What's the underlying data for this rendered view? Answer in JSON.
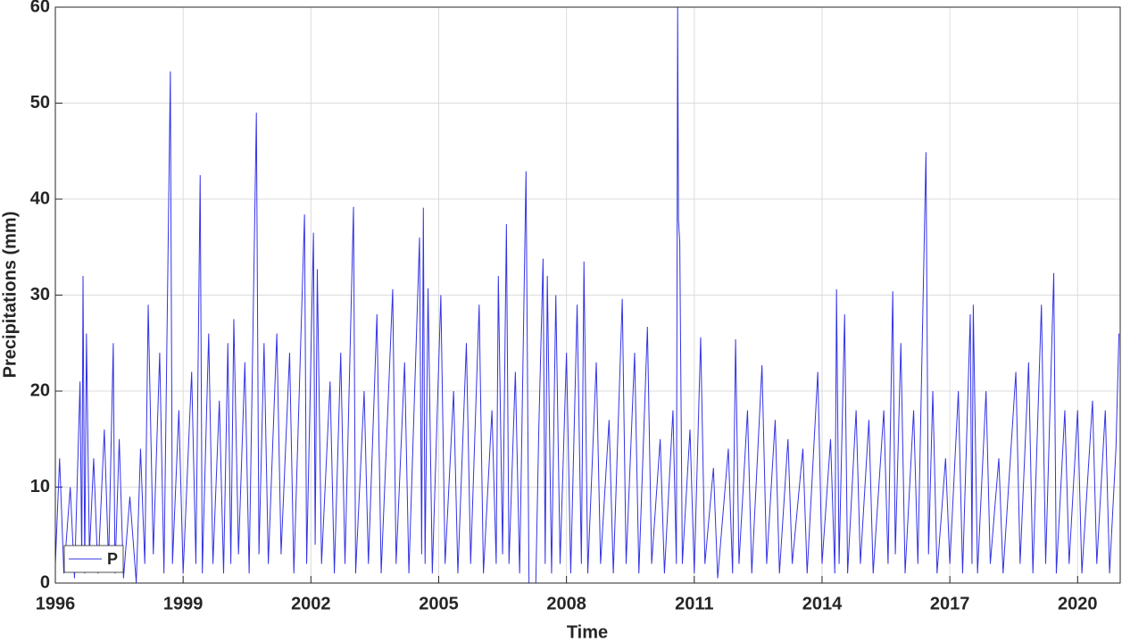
{
  "chart_data": {
    "type": "line",
    "xlabel": "Time",
    "ylabel": "Precipitations (mm)",
    "xlim": [
      1996,
      2021
    ],
    "xticks": [
      1996,
      1999,
      2002,
      2005,
      2008,
      2011,
      2014,
      2017,
      2020
    ],
    "ylim": [
      0,
      60
    ],
    "yticks": [
      0,
      10,
      20,
      30,
      40,
      50,
      60
    ],
    "grid": true,
    "legend": "lower left",
    "x": [
      1996.0,
      1996.1,
      1996.2,
      1996.35,
      1996.45,
      1996.58,
      1996.62,
      1996.65,
      1996.69,
      1996.73,
      1996.8,
      1996.9,
      1997.0,
      1997.15,
      1997.25,
      1997.36,
      1997.4,
      1997.5,
      1997.6,
      1997.75,
      1997.9,
      1998.0,
      1998.1,
      1998.18,
      1998.3,
      1998.45,
      1998.55,
      1998.7,
      1998.75,
      1998.9,
      1999.0,
      1999.2,
      1999.3,
      1999.4,
      1999.45,
      1999.6,
      1999.7,
      1999.85,
      1999.95,
      2000.05,
      2000.12,
      2000.19,
      2000.3,
      2000.45,
      2000.55,
      2000.72,
      2000.78,
      2000.9,
      2001.0,
      2001.2,
      2001.3,
      2001.5,
      2001.6,
      2001.85,
      2001.9,
      2002.06,
      2002.1,
      2002.15,
      2002.25,
      2002.45,
      2002.55,
      2002.7,
      2002.8,
      2003.0,
      2003.05,
      2003.25,
      2003.35,
      2003.55,
      2003.65,
      2003.92,
      2004.0,
      2004.2,
      2004.3,
      2004.55,
      2004.6,
      2004.64,
      2004.68,
      2004.75,
      2004.85,
      2005.05,
      2005.15,
      2005.35,
      2005.45,
      2005.65,
      2005.75,
      2005.95,
      2006.05,
      2006.25,
      2006.35,
      2006.4,
      2006.5,
      2006.59,
      2006.65,
      2006.8,
      2006.9,
      2007.05,
      2007.12,
      2007.28,
      2007.35,
      2007.45,
      2007.5,
      2007.55,
      2007.65,
      2007.75,
      2007.85,
      2008.0,
      2008.1,
      2008.25,
      2008.35,
      2008.41,
      2008.5,
      2008.7,
      2008.8,
      2009.0,
      2009.1,
      2009.31,
      2009.4,
      2009.6,
      2009.7,
      2009.9,
      2010.0,
      2010.2,
      2010.3,
      2010.5,
      2010.58,
      2010.61,
      2010.63,
      2010.66,
      2010.72,
      2010.9,
      2011.0,
      2011.15,
      2011.25,
      2011.45,
      2011.55,
      2011.8,
      2011.9,
      2011.97,
      2012.05,
      2012.25,
      2012.35,
      2012.59,
      2012.7,
      2012.9,
      2013.0,
      2013.2,
      2013.3,
      2013.55,
      2013.65,
      2013.9,
      2014.0,
      2014.2,
      2014.3,
      2014.34,
      2014.4,
      2014.53,
      2014.6,
      2014.8,
      2014.9,
      2015.1,
      2015.2,
      2015.45,
      2015.55,
      2015.66,
      2015.72,
      2015.85,
      2015.95,
      2016.15,
      2016.25,
      2016.44,
      2016.5,
      2016.6,
      2016.7,
      2016.9,
      2017.0,
      2017.2,
      2017.3,
      2017.48,
      2017.52,
      2017.55,
      2017.65,
      2017.85,
      2017.95,
      2018.15,
      2018.25,
      2018.55,
      2018.65,
      2018.85,
      2018.95,
      2019.15,
      2019.25,
      2019.44,
      2019.5,
      2019.7,
      2019.8,
      2020.0,
      2020.1,
      2020.35,
      2020.45,
      2020.65,
      2020.75,
      2020.9,
      2020.97
    ],
    "series": [
      {
        "name": "P",
        "color": "#3333e6",
        "values": [
          2,
          13,
          1,
          10,
          0.5,
          21,
          2,
          32,
          1,
          26,
          3,
          13,
          1,
          16,
          2,
          25,
          1,
          15,
          0.5,
          9,
          0,
          14,
          2,
          29,
          3,
          24,
          1,
          53.3,
          2,
          18,
          1,
          22,
          2,
          42.5,
          1,
          26,
          2,
          19,
          1,
          25,
          2,
          27.5,
          3,
          23,
          1,
          49,
          3,
          25,
          2,
          26,
          3,
          24,
          1,
          38.4,
          2,
          36.5,
          4,
          32.7,
          2,
          21,
          1,
          24,
          2,
          39.2,
          1,
          20,
          2,
          28,
          1,
          30.6,
          2,
          23,
          1,
          36,
          3,
          39.1,
          2,
          30.7,
          1,
          30,
          2,
          20,
          1,
          25,
          2,
          29,
          1,
          18,
          2,
          32,
          3,
          37.4,
          2,
          22,
          1,
          42.9,
          0,
          0,
          16,
          33.8,
          2,
          32,
          1,
          30,
          2,
          24,
          1,
          29,
          2,
          33.5,
          1,
          23,
          2,
          17,
          1,
          29.6,
          2,
          24,
          1,
          26.7,
          2,
          15,
          1,
          18,
          2,
          60,
          37.8,
          35.4,
          2,
          16,
          1,
          25.6,
          2,
          12,
          0.5,
          14,
          1,
          25.4,
          2,
          18,
          1,
          22.7,
          2,
          17,
          1,
          15,
          2,
          14,
          1,
          22,
          2,
          15,
          1,
          30.6,
          2,
          28,
          1,
          18,
          2,
          17,
          1,
          18,
          2,
          30.4,
          3,
          25,
          1,
          18,
          2,
          44.9,
          3,
          20,
          1,
          13,
          2,
          20,
          1,
          28,
          2,
          29,
          1,
          20,
          2,
          13,
          1,
          22,
          2,
          23,
          1,
          29,
          2,
          32.3,
          1,
          18,
          2,
          18,
          1,
          19,
          2,
          18,
          1,
          14,
          26
        ]
      }
    ]
  }
}
